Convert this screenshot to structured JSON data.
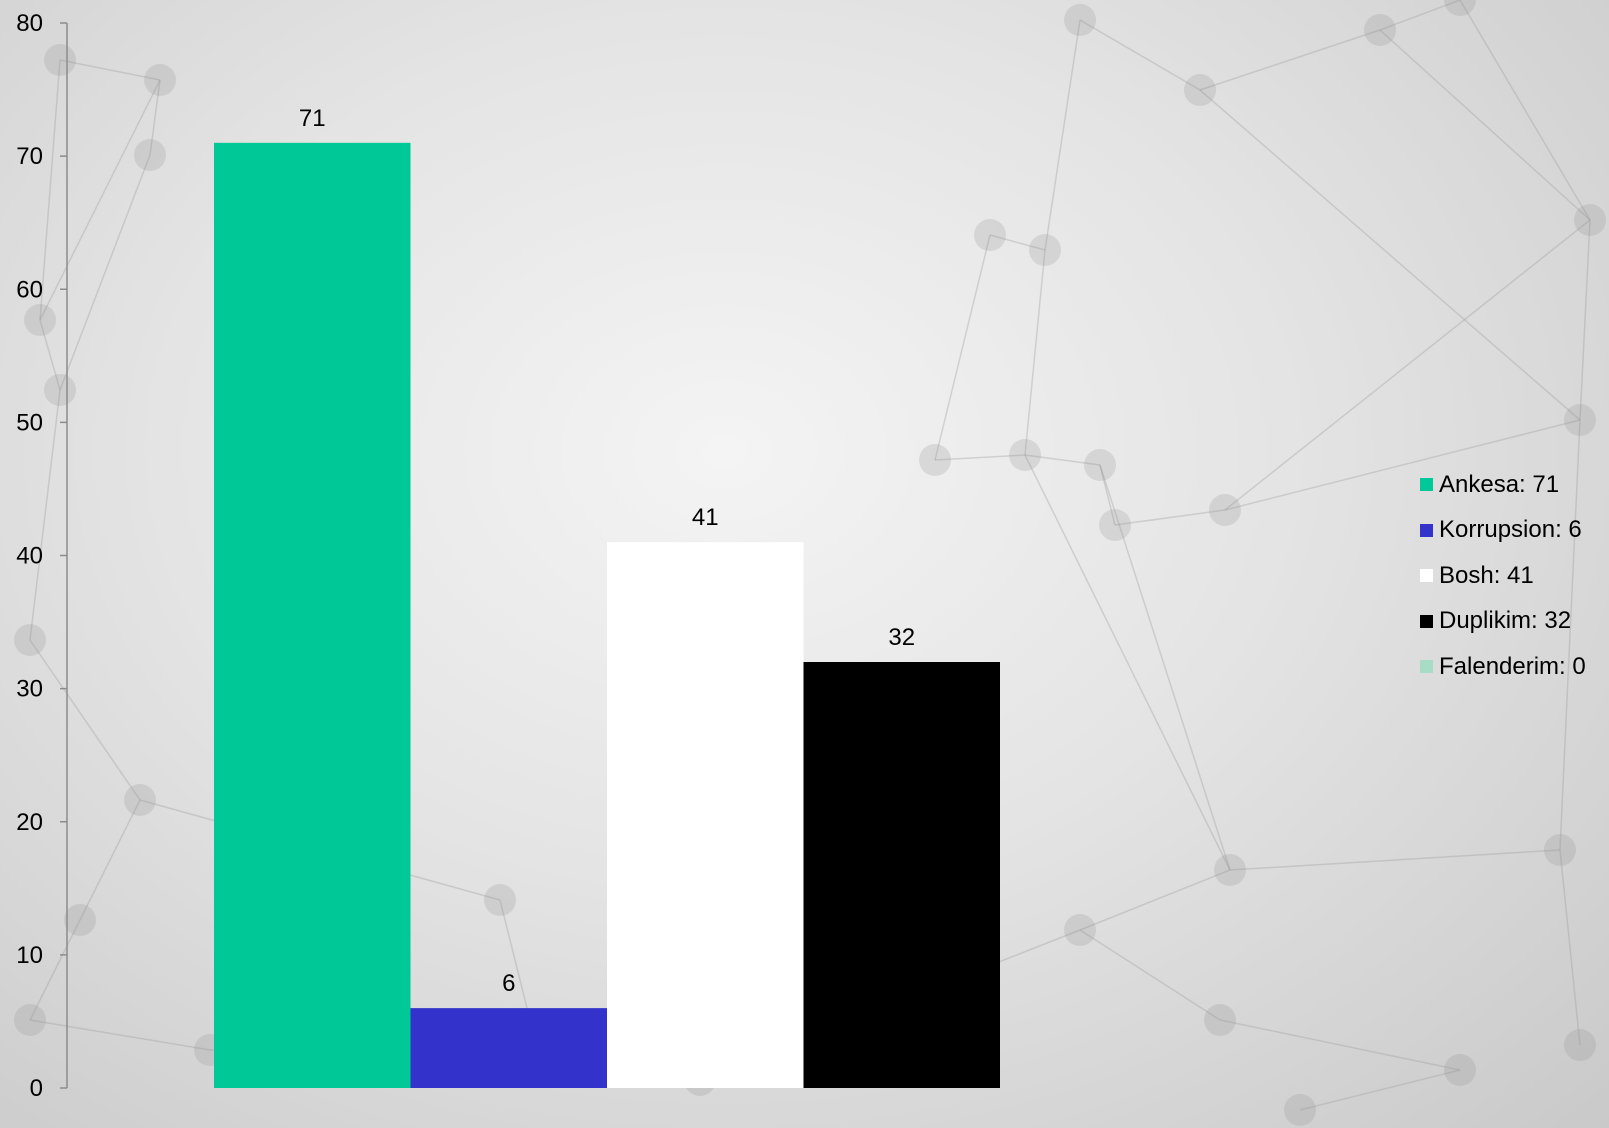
{
  "chart_data": {
    "type": "bar",
    "title": "",
    "xlabel": "",
    "ylabel": "",
    "ylim": [
      0,
      80
    ],
    "yticks": [
      0,
      10,
      20,
      30,
      40,
      50,
      60,
      70,
      80
    ],
    "grid": false,
    "legend_position": "right",
    "series": [
      {
        "name": "Ankesa",
        "value": 71,
        "color": "#00c896",
        "legend_label": "Ankesa: 71"
      },
      {
        "name": "Korrupsion",
        "value": 6,
        "color": "#3333cc",
        "legend_label": "Korrupsion: 6"
      },
      {
        "name": "Bosh",
        "value": 41,
        "color": "#ffffff",
        "legend_label": "Bosh: 41"
      },
      {
        "name": "Duplikim",
        "value": 32,
        "color": "#000000",
        "legend_label": "Duplikim: 32"
      },
      {
        "name": "Falenderim",
        "value": 0,
        "color": "#a8dcc6",
        "legend_label": "Falenderim: 0"
      }
    ]
  }
}
